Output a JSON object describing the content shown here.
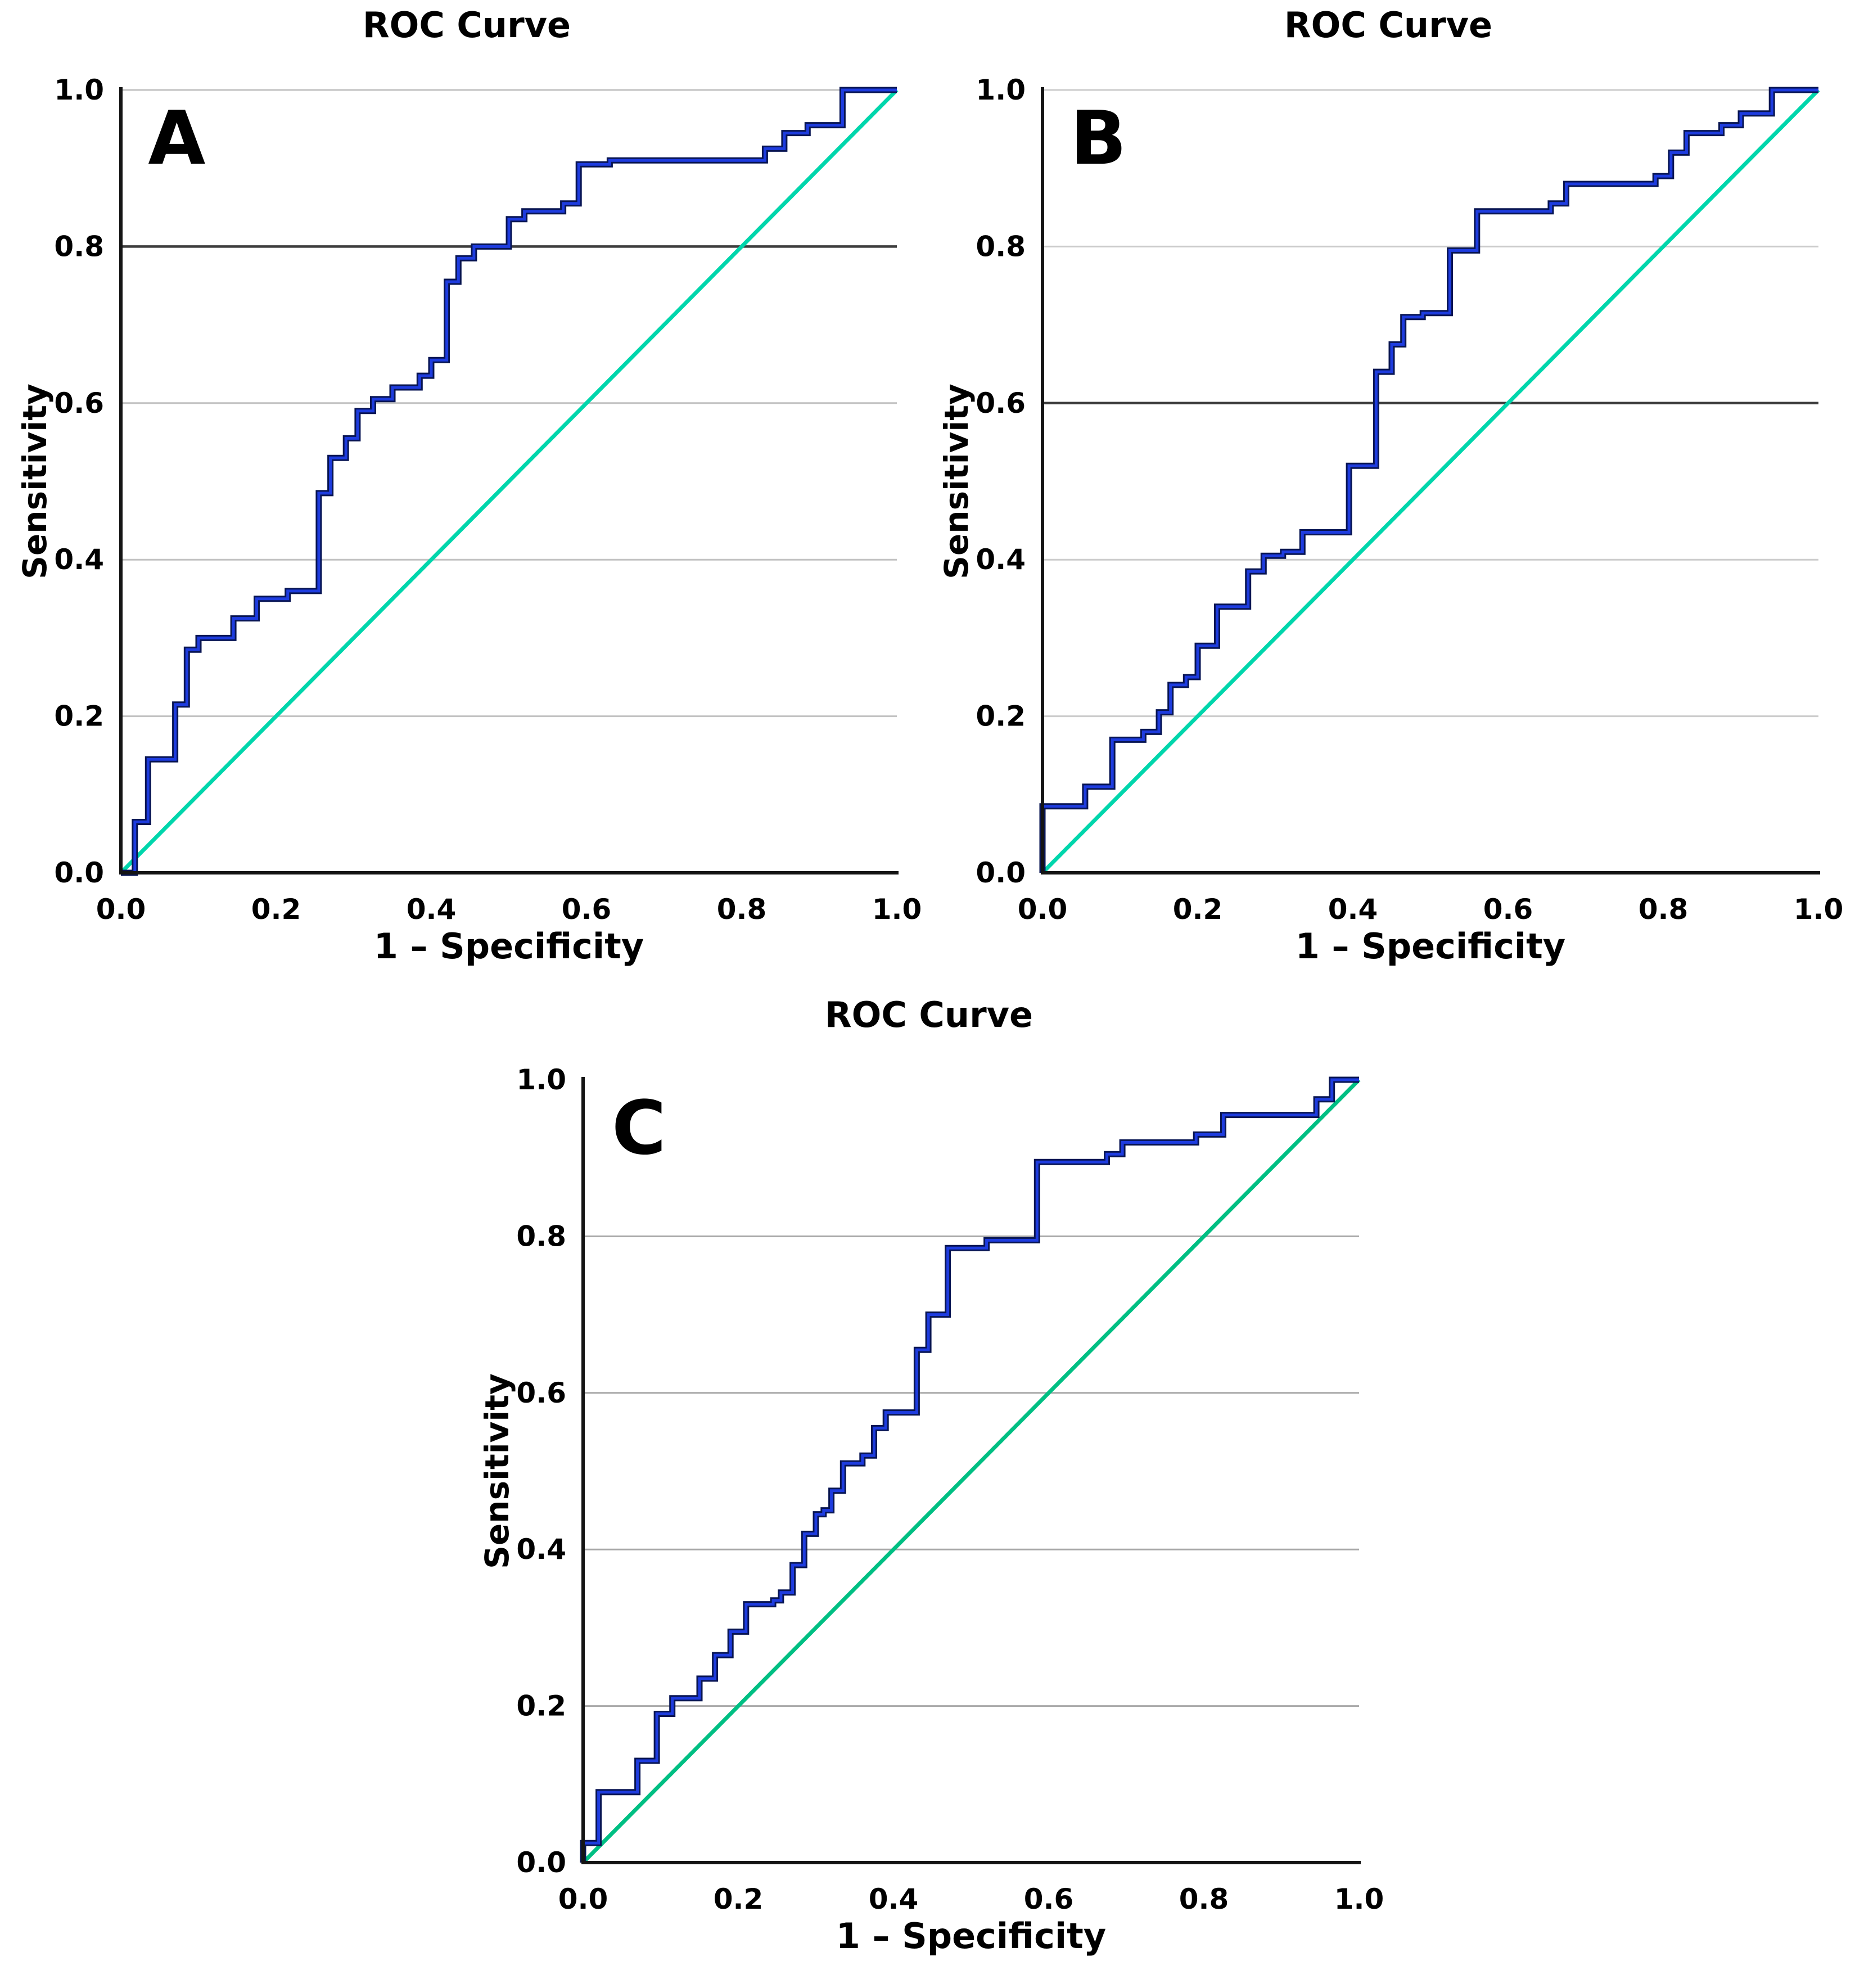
{
  "figure": {
    "background": "#ffffff",
    "text_color": "#000000",
    "axis_color": "#141414",
    "curve_edge_color": "#081553",
    "curve_core_color": "#1e3cdf",
    "dark_gridline_color": "#3d3d3d"
  },
  "chart_data": [
    {
      "type": "line",
      "panel_label": "A",
      "title": "ROC Curve",
      "xlabel": "1 – Specificity",
      "ylabel": "Sensitivity",
      "xlim": [
        0,
        1
      ],
      "ylim": [
        0,
        1
      ],
      "xticks": [
        "0.0",
        "0.2",
        "0.4",
        "0.6",
        "0.8",
        "1.0"
      ],
      "yticks": [
        "0.0",
        "0.2",
        "0.4",
        "0.6",
        "0.8",
        "1.0"
      ],
      "grid_on": true,
      "light_gridlines": [
        0.2,
        0.4,
        0.6,
        1.0
      ],
      "dark_gridline": 0.8,
      "grid_light_color": "#c2c2c2",
      "diagonal_color": "#00d6ac",
      "reference_line": {
        "from": [
          0,
          0
        ],
        "to": [
          1,
          1
        ]
      },
      "legend": null,
      "roc_points": [
        [
          0,
          0
        ],
        [
          0.018,
          0
        ],
        [
          0.018,
          0.065
        ],
        [
          0.035,
          0.065
        ],
        [
          0.035,
          0.145
        ],
        [
          0.07,
          0.145
        ],
        [
          0.07,
          0.215
        ],
        [
          0.085,
          0.215
        ],
        [
          0.085,
          0.285
        ],
        [
          0.1,
          0.285
        ],
        [
          0.1,
          0.3
        ],
        [
          0.145,
          0.3
        ],
        [
          0.145,
          0.325
        ],
        [
          0.175,
          0.325
        ],
        [
          0.175,
          0.35
        ],
        [
          0.215,
          0.35
        ],
        [
          0.215,
          0.36
        ],
        [
          0.255,
          0.36
        ],
        [
          0.255,
          0.485
        ],
        [
          0.27,
          0.485
        ],
        [
          0.27,
          0.53
        ],
        [
          0.29,
          0.53
        ],
        [
          0.29,
          0.555
        ],
        [
          0.305,
          0.555
        ],
        [
          0.305,
          0.59
        ],
        [
          0.325,
          0.59
        ],
        [
          0.325,
          0.605
        ],
        [
          0.35,
          0.605
        ],
        [
          0.35,
          0.62
        ],
        [
          0.385,
          0.62
        ],
        [
          0.385,
          0.635
        ],
        [
          0.4,
          0.635
        ],
        [
          0.4,
          0.655
        ],
        [
          0.42,
          0.655
        ],
        [
          0.42,
          0.755
        ],
        [
          0.435,
          0.755
        ],
        [
          0.435,
          0.785
        ],
        [
          0.455,
          0.785
        ],
        [
          0.455,
          0.8
        ],
        [
          0.5,
          0.8
        ],
        [
          0.5,
          0.835
        ],
        [
          0.52,
          0.835
        ],
        [
          0.52,
          0.845
        ],
        [
          0.57,
          0.845
        ],
        [
          0.57,
          0.855
        ],
        [
          0.59,
          0.855
        ],
        [
          0.59,
          0.905
        ],
        [
          0.63,
          0.905
        ],
        [
          0.63,
          0.91
        ],
        [
          0.83,
          0.91
        ],
        [
          0.83,
          0.925
        ],
        [
          0.855,
          0.925
        ],
        [
          0.855,
          0.945
        ],
        [
          0.885,
          0.945
        ],
        [
          0.885,
          0.955
        ],
        [
          0.93,
          0.955
        ],
        [
          0.93,
          1
        ],
        [
          1,
          1
        ]
      ]
    },
    {
      "type": "line",
      "panel_label": "B",
      "title": "ROC Curve",
      "xlabel": "1 – Specificity",
      "ylabel": "Sensitivity",
      "xlim": [
        0,
        1
      ],
      "ylim": [
        0,
        1
      ],
      "xticks": [
        "0.0",
        "0.2",
        "0.4",
        "0.6",
        "0.8",
        "1.0"
      ],
      "yticks": [
        "0.0",
        "0.2",
        "0.4",
        "0.6",
        "0.8",
        "1.0"
      ],
      "grid_on": true,
      "light_gridlines": [
        0.2,
        0.4,
        0.8,
        1.0
      ],
      "dark_gridline": 0.6,
      "grid_light_color": "#cccccc",
      "diagonal_color": "#00d6ac",
      "reference_line": {
        "from": [
          0,
          0
        ],
        "to": [
          1,
          1
        ]
      },
      "legend": null,
      "roc_points": [
        [
          0,
          0
        ],
        [
          0,
          0.085
        ],
        [
          0.055,
          0.085
        ],
        [
          0.055,
          0.11
        ],
        [
          0.09,
          0.11
        ],
        [
          0.09,
          0.17
        ],
        [
          0.13,
          0.17
        ],
        [
          0.13,
          0.18
        ],
        [
          0.15,
          0.18
        ],
        [
          0.15,
          0.205
        ],
        [
          0.165,
          0.205
        ],
        [
          0.165,
          0.24
        ],
        [
          0.185,
          0.24
        ],
        [
          0.185,
          0.25
        ],
        [
          0.2,
          0.25
        ],
        [
          0.2,
          0.29
        ],
        [
          0.225,
          0.29
        ],
        [
          0.225,
          0.34
        ],
        [
          0.265,
          0.34
        ],
        [
          0.265,
          0.385
        ],
        [
          0.285,
          0.385
        ],
        [
          0.285,
          0.405
        ],
        [
          0.31,
          0.405
        ],
        [
          0.31,
          0.41
        ],
        [
          0.335,
          0.41
        ],
        [
          0.335,
          0.435
        ],
        [
          0.395,
          0.435
        ],
        [
          0.395,
          0.52
        ],
        [
          0.43,
          0.52
        ],
        [
          0.43,
          0.64
        ],
        [
          0.45,
          0.64
        ],
        [
          0.45,
          0.675
        ],
        [
          0.465,
          0.675
        ],
        [
          0.465,
          0.71
        ],
        [
          0.49,
          0.71
        ],
        [
          0.49,
          0.715
        ],
        [
          0.525,
          0.715
        ],
        [
          0.525,
          0.795
        ],
        [
          0.56,
          0.795
        ],
        [
          0.56,
          0.845
        ],
        [
          0.655,
          0.845
        ],
        [
          0.655,
          0.855
        ],
        [
          0.675,
          0.855
        ],
        [
          0.675,
          0.88
        ],
        [
          0.79,
          0.88
        ],
        [
          0.79,
          0.89
        ],
        [
          0.81,
          0.89
        ],
        [
          0.81,
          0.92
        ],
        [
          0.83,
          0.92
        ],
        [
          0.83,
          0.945
        ],
        [
          0.875,
          0.945
        ],
        [
          0.875,
          0.955
        ],
        [
          0.9,
          0.955
        ],
        [
          0.9,
          0.97
        ],
        [
          0.94,
          0.97
        ],
        [
          0.94,
          1
        ],
        [
          1,
          1
        ]
      ]
    },
    {
      "type": "line",
      "panel_label": "C",
      "title": "ROC Curve",
      "xlabel": "1 – Specificity",
      "ylabel": "Sensitivity",
      "xlim": [
        0,
        1
      ],
      "ylim": [
        0,
        1
      ],
      "xticks": [
        "0.0",
        "0.2",
        "0.4",
        "0.6",
        "0.8",
        "1.0"
      ],
      "yticks": [
        "0.0",
        "0.2",
        "0.4",
        "0.6",
        "0.8",
        "1.0"
      ],
      "grid_on": true,
      "light_gridlines": [
        0.2,
        0.4,
        0.6,
        0.8
      ],
      "dark_gridline": null,
      "grid_light_color": "#a8a8a8",
      "diagonal_color": "#00bf83",
      "reference_line": {
        "from": [
          0,
          0
        ],
        "to": [
          1,
          1
        ]
      },
      "legend": null,
      "roc_points": [
        [
          0,
          0
        ],
        [
          0,
          0.025
        ],
        [
          0.02,
          0.025
        ],
        [
          0.02,
          0.09
        ],
        [
          0.07,
          0.09
        ],
        [
          0.07,
          0.13
        ],
        [
          0.095,
          0.13
        ],
        [
          0.095,
          0.19
        ],
        [
          0.115,
          0.19
        ],
        [
          0.115,
          0.21
        ],
        [
          0.15,
          0.21
        ],
        [
          0.15,
          0.235
        ],
        [
          0.17,
          0.235
        ],
        [
          0.17,
          0.265
        ],
        [
          0.19,
          0.265
        ],
        [
          0.19,
          0.295
        ],
        [
          0.21,
          0.295
        ],
        [
          0.21,
          0.33
        ],
        [
          0.245,
          0.33
        ],
        [
          0.245,
          0.335
        ],
        [
          0.255,
          0.335
        ],
        [
          0.255,
          0.345
        ],
        [
          0.27,
          0.345
        ],
        [
          0.27,
          0.38
        ],
        [
          0.285,
          0.38
        ],
        [
          0.285,
          0.42
        ],
        [
          0.3,
          0.42
        ],
        [
          0.3,
          0.445
        ],
        [
          0.31,
          0.445
        ],
        [
          0.31,
          0.45
        ],
        [
          0.32,
          0.45
        ],
        [
          0.32,
          0.475
        ],
        [
          0.335,
          0.475
        ],
        [
          0.335,
          0.51
        ],
        [
          0.36,
          0.51
        ],
        [
          0.36,
          0.52
        ],
        [
          0.375,
          0.52
        ],
        [
          0.375,
          0.555
        ],
        [
          0.39,
          0.555
        ],
        [
          0.39,
          0.575
        ],
        [
          0.43,
          0.575
        ],
        [
          0.43,
          0.655
        ],
        [
          0.445,
          0.655
        ],
        [
          0.445,
          0.7
        ],
        [
          0.47,
          0.7
        ],
        [
          0.47,
          0.785
        ],
        [
          0.52,
          0.785
        ],
        [
          0.52,
          0.795
        ],
        [
          0.585,
          0.795
        ],
        [
          0.585,
          0.895
        ],
        [
          0.675,
          0.895
        ],
        [
          0.675,
          0.905
        ],
        [
          0.695,
          0.905
        ],
        [
          0.695,
          0.92
        ],
        [
          0.79,
          0.92
        ],
        [
          0.79,
          0.93
        ],
        [
          0.825,
          0.93
        ],
        [
          0.825,
          0.955
        ],
        [
          0.945,
          0.955
        ],
        [
          0.945,
          0.975
        ],
        [
          0.965,
          0.975
        ],
        [
          0.965,
          1
        ],
        [
          1,
          1
        ]
      ]
    }
  ]
}
